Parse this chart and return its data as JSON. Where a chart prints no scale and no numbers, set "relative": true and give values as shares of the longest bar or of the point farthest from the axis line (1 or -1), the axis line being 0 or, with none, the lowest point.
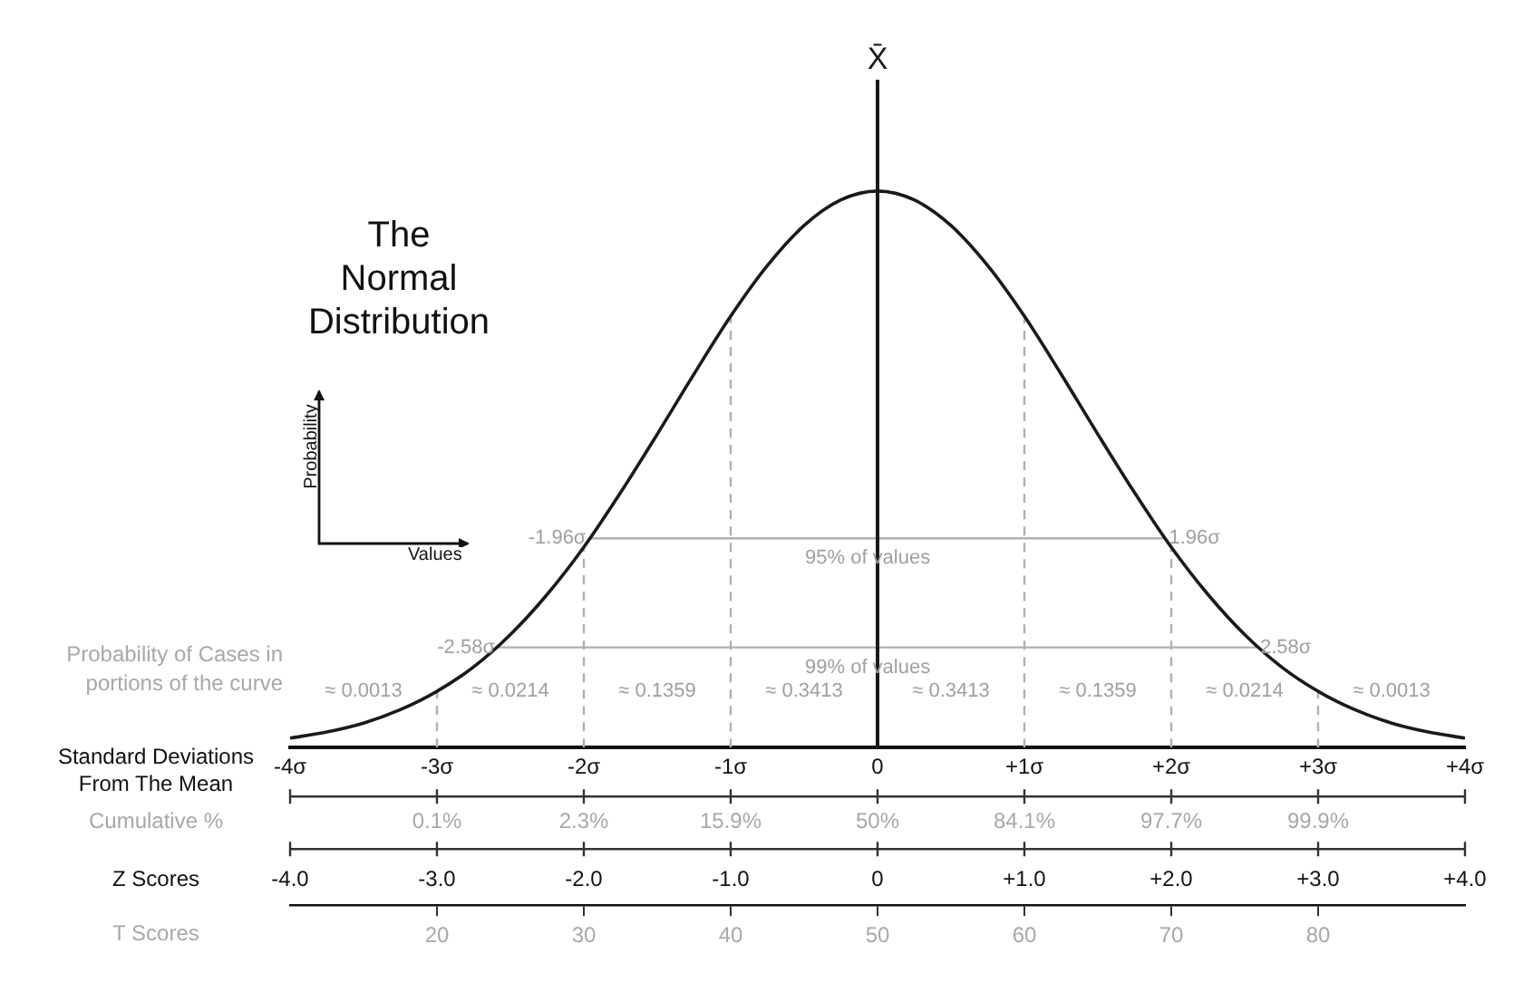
{
  "chart_data": {
    "type": "line",
    "title": "The Normal Distribution",
    "ylabel": "Probability",
    "xlabel": "Standard Deviations From The Mean",
    "x2label": "T Scores",
    "relative": true,
    "marker": "none",
    "legend": false,
    "grid": false,
    "series": [
      {
        "color": "#1a1a1a",
        "x": [
          -4,
          -3.75,
          -3.5,
          -3.25,
          -3,
          -2.75,
          -2.5,
          -2.25,
          -2,
          -1.75,
          -1.5,
          -1.25,
          -1,
          -0.75,
          -0.5,
          -0.25,
          0,
          0.25,
          0.5,
          0.75,
          1,
          1.25,
          1.5,
          1.75,
          2,
          2.25,
          2.5,
          2.75,
          3,
          3.25,
          3.5,
          3.75,
          4
        ],
        "values": [
          0.017,
          0.028,
          0.044,
          0.068,
          0.101,
          0.145,
          0.203,
          0.275,
          0.36,
          0.458,
          0.563,
          0.671,
          0.775,
          0.866,
          0.938,
          0.984,
          1,
          0.984,
          0.938,
          0.866,
          0.775,
          0.671,
          0.563,
          0.458,
          0.36,
          0.275,
          0.203,
          0.145,
          0.101,
          0.068,
          0.044,
          0.028,
          0.017
        ]
      },
      {
        "color": "#b0b0b0",
        "line_style": "dashed",
        "x": [
          -3,
          -3
        ],
        "values": [
          0,
          0.101
        ]
      },
      {
        "color": "#b0b0b0",
        "line_style": "dashed",
        "x": [
          -2,
          -2
        ],
        "values": [
          0,
          0.36
        ]
      },
      {
        "color": "#b0b0b0",
        "line_style": "dashed",
        "x": [
          -1,
          -1
        ],
        "values": [
          0,
          0.775
        ]
      },
      {
        "color": "#b0b0b0",
        "line_style": "dashed",
        "x": [
          1,
          1
        ],
        "values": [
          0,
          0.775
        ]
      },
      {
        "color": "#b0b0b0",
        "line_style": "dashed",
        "x": [
          2,
          2
        ],
        "values": [
          0,
          0.36
        ]
      },
      {
        "color": "#b0b0b0",
        "line_style": "dashed",
        "x": [
          3,
          3
        ],
        "values": [
          0,
          0.101
        ]
      },
      {
        "color": "#b0b0b0",
        "x": [
          -1.96,
          1.96
        ],
        "values": [
          0.376,
          0.376
        ]
      },
      {
        "color": "#b0b0b0",
        "x": [
          -2.58,
          2.58
        ],
        "values": [
          0.18,
          0.18
        ]
      }
    ],
    "xlim": [
      -4,
      4
    ],
    "xticks": [
      {
        "value": -4,
        "label": "-4σ"
      },
      {
        "value": -3,
        "label": "-3σ"
      },
      {
        "value": -2,
        "label": "-2σ"
      },
      {
        "value": -1,
        "label": "-1σ"
      },
      0,
      {
        "value": 1,
        "label": "+1σ"
      },
      {
        "value": 2,
        "label": "+2σ"
      },
      {
        "value": 3,
        "label": "+3σ"
      },
      {
        "value": 4,
        "label": "+4σ"
      }
    ],
    "x2lim": [
      10,
      90
    ],
    "x2ticks": [
      20,
      30,
      40,
      50,
      60,
      70,
      80
    ],
    "ref_lines": [
      {
        "axis": "x",
        "value": 0,
        "label": "X̄",
        "color": "#1a1a1a"
      }
    ],
    "annotations": [
      "Probability of Cases in portions of the curve",
      "Values",
      "≈ 0.0013",
      "≈ 0.0214",
      "≈ 0.1359",
      "≈ 0.3413",
      "≈ 0.3413",
      "≈ 0.1359",
      "≈ 0.0214",
      "≈ 0.0013",
      "Cumulative %",
      "0.1%",
      "2.3%",
      "15.9%",
      "50%",
      "84.1%",
      "97.7%",
      "99.9%",
      "Z Scores",
      "-4.0",
      "-3.0",
      "-2.0",
      "-1.0",
      "0",
      "+1.0",
      "+2.0",
      "+3.0",
      "+4.0",
      {
        "text": "-1.96σ",
        "x": -1.96,
        "y": 0.376
      },
      {
        "text": "1.96σ",
        "x": 1.96,
        "y": 0.376
      },
      {
        "text": "95% of values",
        "x": 0,
        "y": 0.376
      },
      {
        "text": "-2.58σ",
        "x": -2.58,
        "y": 0.18
      },
      {
        "text": "2.58σ",
        "x": 2.58,
        "y": 0.18
      },
      {
        "text": "99% of values",
        "x": 0,
        "y": 0.18
      }
    ]
  }
}
